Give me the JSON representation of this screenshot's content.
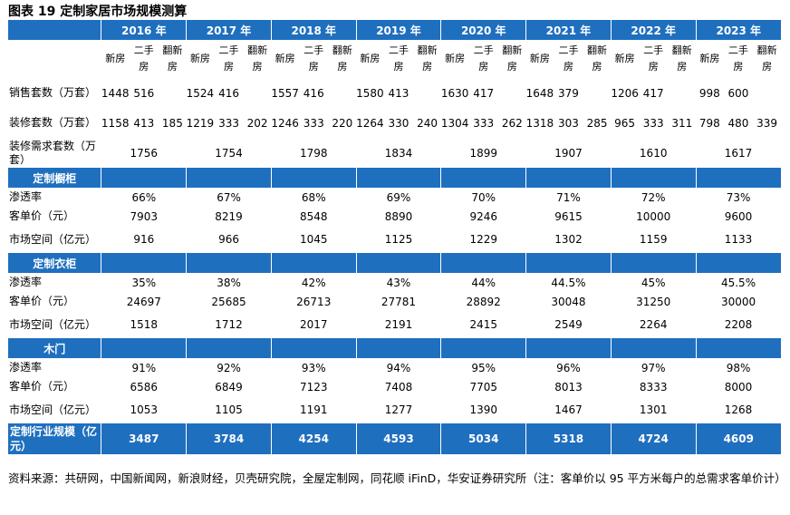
{
  "title": "图表 19 定制家居市场规模测算",
  "years": [
    "2016 年",
    "2017 年",
    "2018 年",
    "2019 年",
    "2020 年",
    "2021 年",
    "2022 年",
    "2023 年"
  ],
  "subheaders": {
    "new": "新房",
    "second": "二手房",
    "reno": "翻新房"
  },
  "sales": {
    "label": "销售套数（万套）",
    "values": [
      [
        "1448",
        "516"
      ],
      [
        "1524",
        "416"
      ],
      [
        "1557",
        "416"
      ],
      [
        "1580",
        "413"
      ],
      [
        "1630",
        "417"
      ],
      [
        "1648",
        "379"
      ],
      [
        "1206",
        "417"
      ],
      [
        "998",
        "600"
      ]
    ]
  },
  "renovation": {
    "label": "装修套数（万套）",
    "values": [
      [
        "1158",
        "413",
        "185"
      ],
      [
        "1219",
        "333",
        "202"
      ],
      [
        "1246",
        "333",
        "220"
      ],
      [
        "1264",
        "330",
        "240"
      ],
      [
        "1304",
        "333",
        "262"
      ],
      [
        "1318",
        "303",
        "285"
      ],
      [
        "965",
        "333",
        "311"
      ],
      [
        "798",
        "480",
        "339"
      ]
    ]
  },
  "demand": {
    "label": "装修需求套数（万套）",
    "values": [
      "1756",
      "1754",
      "1798",
      "1834",
      "1899",
      "1907",
      "1610",
      "1617"
    ]
  },
  "sections": [
    {
      "name": "定制橱柜",
      "rows": [
        {
          "label": "渗透率",
          "values": [
            "66%",
            "67%",
            "68%",
            "69%",
            "70%",
            "71%",
            "72%",
            "73%"
          ]
        },
        {
          "label": "客单价（元）",
          "values": [
            "7903",
            "8219",
            "8548",
            "8890",
            "9246",
            "9615",
            "10000",
            "9600"
          ]
        },
        {
          "label": "市场空间（亿元）",
          "values": [
            "916",
            "966",
            "1045",
            "1125",
            "1229",
            "1302",
            "1159",
            "1133"
          ]
        }
      ]
    },
    {
      "name": "定制衣柜",
      "rows": [
        {
          "label": "渗透率",
          "values": [
            "35%",
            "38%",
            "42%",
            "43%",
            "44%",
            "44.5%",
            "45%",
            "45.5%"
          ]
        },
        {
          "label": "客单价（元）",
          "values": [
            "24697",
            "25685",
            "26713",
            "27781",
            "28892",
            "30048",
            "31250",
            "30000"
          ]
        },
        {
          "label": "市场空间（亿元）",
          "values": [
            "1518",
            "1712",
            "2017",
            "2191",
            "2415",
            "2549",
            "2264",
            "2208"
          ]
        }
      ]
    },
    {
      "name": "木门",
      "rows": [
        {
          "label": "渗透率",
          "values": [
            "91%",
            "92%",
            "93%",
            "94%",
            "95%",
            "96%",
            "97%",
            "98%"
          ]
        },
        {
          "label": "客单价（元）",
          "values": [
            "6586",
            "6849",
            "7123",
            "7408",
            "7705",
            "8013",
            "8333",
            "8000"
          ]
        },
        {
          "label": "市场空间（亿元）",
          "values": [
            "1053",
            "1105",
            "1191",
            "1277",
            "1390",
            "1467",
            "1301",
            "1268"
          ]
        }
      ]
    }
  ],
  "total": {
    "label": "定制行业规模（亿元）",
    "values": [
      "3487",
      "3784",
      "4254",
      "4593",
      "5034",
      "5318",
      "4724",
      "4609"
    ]
  },
  "source": "资料来源：共研网，中国新闻网，新浪财经，贝壳研究院，全屋定制网，同花顺 iFinD，华安证券研究所（注：客单价以 95 平方米每户的总需求客单价计）"
}
